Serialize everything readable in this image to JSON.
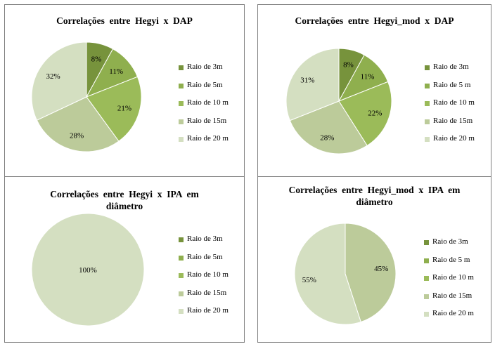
{
  "colors": [
    "#77933c",
    "#8faf4e",
    "#9bbb59",
    "#bccb9a",
    "#d4dfc1"
  ],
  "chart_data": [
    {
      "type": "pie",
      "title": "Correlações  entre  Hegyi  x  DAP",
      "categories": [
        "Raio de 3m",
        "Raio de 5m",
        "Raio de 10 m",
        "Raio de 15m",
        "Raio de 20 m"
      ],
      "values": [
        8,
        11,
        21,
        28,
        32
      ],
      "labels": [
        "8%",
        "11%",
        "21%",
        "28%",
        "32%"
      ],
      "legend": "right"
    },
    {
      "type": "pie",
      "title": "Correlações  entre  Hegyi_mod  x  DAP",
      "categories": [
        "Raio de 3m",
        "Raio de 5 m",
        "Raio de 10  m",
        "Raio de 15m",
        "Raio de 20 m"
      ],
      "values": [
        8,
        11,
        22,
        28,
        31
      ],
      "labels": [
        "8%",
        "11%",
        "22%",
        "28%",
        "31%"
      ],
      "legend": "right"
    },
    {
      "type": "pie",
      "title": "Correlações  entre  Hegyi  x  IPA  em\ndiâmetro",
      "categories": [
        "Raio de 3m",
        "Raio de 5m",
        "Raio de 10 m",
        "Raio de 15m",
        "Raio de 20 m"
      ],
      "values": [
        0,
        0,
        0,
        0,
        100
      ],
      "labels": [
        "",
        "",
        "",
        "",
        "100%"
      ],
      "legend": "right"
    },
    {
      "type": "pie",
      "title": "Correlações  entre  Hegyi_mod  x  IPA  em\ndiâmetro",
      "categories": [
        "Raio de 3m",
        "Raio de 5 m",
        "Raio de 10 m",
        "Raio de 15m",
        "Raio de 20 m"
      ],
      "values": [
        0,
        0,
        0,
        45,
        55
      ],
      "labels": [
        "",
        "",
        "",
        "45%",
        "55%"
      ],
      "legend": "right"
    }
  ]
}
